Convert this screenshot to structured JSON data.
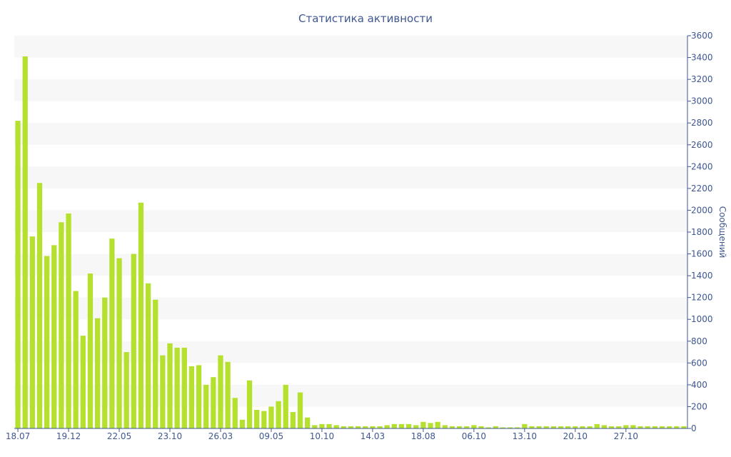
{
  "chart_data": {
    "type": "bar",
    "title": "Статистика активности",
    "ylabel": "Сообщений",
    "xlabel": "",
    "ylim": [
      0,
      3600
    ],
    "y_ticks": [
      0,
      200,
      400,
      600,
      800,
      1000,
      1200,
      1400,
      1600,
      1800,
      2000,
      2200,
      2400,
      2600,
      2800,
      3000,
      3200,
      3400,
      3600
    ],
    "x_tick_labels": [
      {
        "index": 0,
        "label": "18.07"
      },
      {
        "index": 7,
        "label": "19.12"
      },
      {
        "index": 14,
        "label": "22.05"
      },
      {
        "index": 21,
        "label": "23.10"
      },
      {
        "index": 28,
        "label": "26.03"
      },
      {
        "index": 35,
        "label": "09.05"
      },
      {
        "index": 42,
        "label": "10.10"
      },
      {
        "index": 49,
        "label": "14.03"
      },
      {
        "index": 56,
        "label": "18.08"
      },
      {
        "index": 63,
        "label": "06.10"
      },
      {
        "index": 70,
        "label": "13.10"
      },
      {
        "index": 77,
        "label": "20.10"
      },
      {
        "index": 84,
        "label": "27.10"
      }
    ],
    "values": [
      2820,
      3410,
      1760,
      2250,
      1580,
      1680,
      1890,
      1970,
      1260,
      850,
      1420,
      1010,
      1200,
      1740,
      1560,
      700,
      1600,
      2070,
      1330,
      1180,
      670,
      780,
      740,
      740,
      570,
      580,
      400,
      470,
      670,
      610,
      280,
      80,
      440,
      170,
      160,
      200,
      250,
      400,
      150,
      330,
      100,
      30,
      40,
      40,
      30,
      20,
      20,
      20,
      20,
      20,
      20,
      30,
      40,
      40,
      40,
      30,
      60,
      50,
      60,
      30,
      20,
      20,
      20,
      30,
      20,
      10,
      20,
      10,
      10,
      10,
      40,
      20,
      20,
      20,
      20,
      20,
      20,
      20,
      20,
      20,
      40,
      30,
      20,
      20,
      30,
      30,
      20,
      20,
      20,
      20,
      20,
      20,
      20
    ],
    "bar_color": "#b5e12e",
    "band_color": "#f7f7f7",
    "axis_color": "#3e5791",
    "y_axis_side": "right",
    "grid": "alternating horizontal bands"
  }
}
